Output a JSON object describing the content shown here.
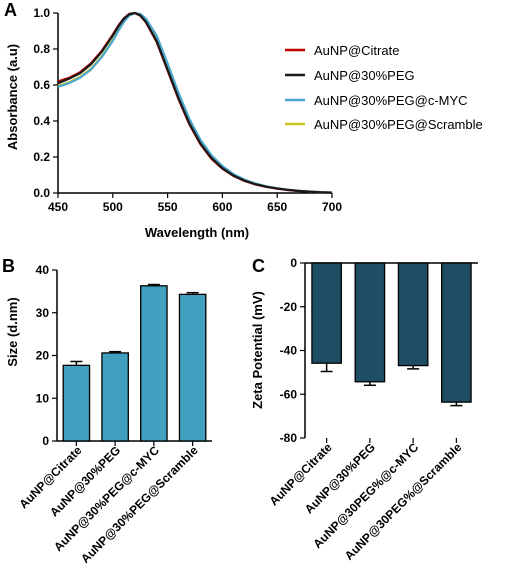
{
  "chart_data": [
    {
      "panel": "A",
      "type": "line",
      "xlabel": "Wavelength (nm)",
      "ylabel": "Absorbance (a.u)",
      "xlim": [
        450,
        700
      ],
      "ylim": [
        0,
        1.0
      ],
      "xticks": [
        "450",
        "500",
        "550",
        "600",
        "650",
        "700"
      ],
      "yticks": [
        "0.0",
        "0.2",
        "0.4",
        "0.6",
        "0.8",
        "1.0"
      ],
      "legend": "top-right",
      "x": [
        450,
        460,
        470,
        480,
        490,
        500,
        505,
        510,
        515,
        520,
        525,
        530,
        540,
        550,
        560,
        570,
        580,
        590,
        600,
        610,
        620,
        630,
        640,
        650,
        660,
        670,
        680,
        690,
        700
      ],
      "series": [
        {
          "name": "AuNP@Citrate",
          "color": "#c00000",
          "values": [
            0.62,
            0.64,
            0.67,
            0.72,
            0.79,
            0.88,
            0.93,
            0.97,
            0.995,
            1.0,
            0.985,
            0.95,
            0.84,
            0.68,
            0.52,
            0.38,
            0.27,
            0.19,
            0.135,
            0.095,
            0.068,
            0.048,
            0.034,
            0.024,
            0.016,
            0.011,
            0.007,
            0.004,
            0.002
          ]
        },
        {
          "name": "AuNP@30%PEG",
          "color": "#1a1a1a",
          "values": [
            0.61,
            0.635,
            0.665,
            0.715,
            0.785,
            0.875,
            0.925,
            0.968,
            0.993,
            1.0,
            0.987,
            0.953,
            0.845,
            0.685,
            0.525,
            0.385,
            0.275,
            0.195,
            0.138,
            0.097,
            0.069,
            0.049,
            0.035,
            0.025,
            0.017,
            0.011,
            0.007,
            0.004,
            0.002
          ]
        },
        {
          "name": "AuNP@30%PEG@c-MYC",
          "color": "#4aa8d0",
          "values": [
            0.59,
            0.61,
            0.64,
            0.685,
            0.755,
            0.845,
            0.9,
            0.95,
            0.985,
            1.0,
            0.995,
            0.97,
            0.875,
            0.72,
            0.555,
            0.41,
            0.295,
            0.21,
            0.15,
            0.105,
            0.075,
            0.053,
            0.037,
            0.026,
            0.018,
            0.012,
            0.008,
            0.005,
            0.002
          ]
        },
        {
          "name": "AuNP@30%PEG@Scramble",
          "color": "#c8c81e",
          "values": [
            0.595,
            0.615,
            0.645,
            0.69,
            0.76,
            0.85,
            0.905,
            0.953,
            0.987,
            1.0,
            0.993,
            0.966,
            0.87,
            0.715,
            0.55,
            0.405,
            0.292,
            0.208,
            0.148,
            0.104,
            0.074,
            0.052,
            0.036,
            0.026,
            0.018,
            0.012,
            0.008,
            0.005,
            0.002
          ]
        }
      ]
    },
    {
      "panel": "B",
      "type": "bar",
      "ylabel": "Size (d.nm)",
      "ylim": [
        0,
        40
      ],
      "yticks": [
        "0",
        "10",
        "20",
        "30",
        "40"
      ],
      "bar_color": "#41a0bf",
      "categories": [
        "AuNP@Citrate",
        "AuNP@30%PEG",
        "AuNP@30%PEG@c-MYC",
        "AuNP@30%PEG@Scramble"
      ],
      "values": [
        17.7,
        20.6,
        36.3,
        34.3
      ],
      "errors": [
        0.9,
        0.3,
        0.3,
        0.4
      ]
    },
    {
      "panel": "C",
      "type": "bar",
      "ylabel": "Zeta Potential (mV)",
      "ylim": [
        -80,
        0
      ],
      "yticks": [
        "0",
        "-20",
        "-40",
        "-60",
        "-80"
      ],
      "bar_color": "#1e4e64",
      "categories": [
        "AuNP@Citrate",
        "AuNP@30%PEG",
        "AuNP@30PEG%@c-MYC",
        "AuNP@30PEG%@Scramble"
      ],
      "values": [
        -45.8,
        -54.3,
        -46.9,
        -63.6
      ],
      "errors": [
        3.8,
        1.6,
        1.5,
        1.6
      ]
    }
  ]
}
